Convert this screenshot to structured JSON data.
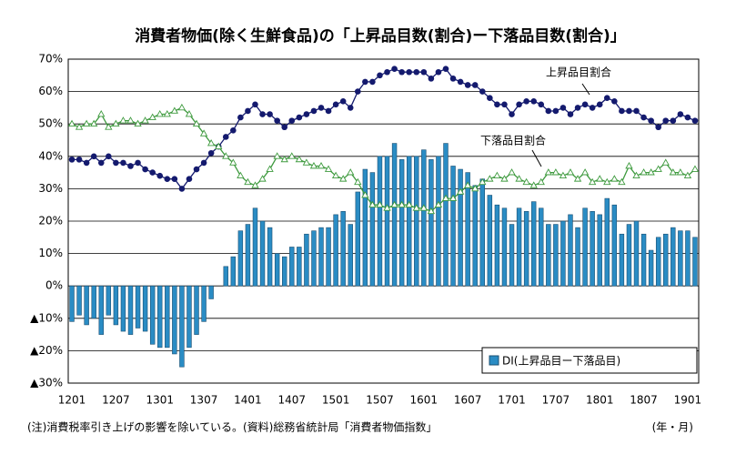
{
  "chart_data": {
    "type": "bar",
    "title": "消費者物価(除く生鮮食品)の「上昇品目数(割合)ー下落品目数(割合)」",
    "footnote": "(注)消費税率引き上げの影響を除いている。(資料)総務省統計局「消費者物価指数」",
    "x_unit": "(年・月)",
    "categories": [
      "1201",
      null,
      null,
      null,
      null,
      null,
      "1207",
      null,
      null,
      null,
      null,
      null,
      "1301",
      null,
      null,
      null,
      null,
      null,
      "1307",
      null,
      null,
      null,
      null,
      null,
      "1401",
      null,
      null,
      null,
      null,
      null,
      "1407",
      null,
      null,
      null,
      null,
      null,
      "1501",
      null,
      null,
      null,
      null,
      null,
      "1507",
      null,
      null,
      null,
      null,
      null,
      "1601",
      null,
      null,
      null,
      null,
      null,
      "1607",
      null,
      null,
      null,
      null,
      null,
      "1701",
      null,
      null,
      null,
      null,
      null,
      "1707",
      null,
      null,
      null,
      null,
      null,
      "1801",
      null,
      null,
      null,
      null,
      null,
      "1807",
      null,
      null,
      null,
      null,
      null,
      "1901",
      null
    ],
    "series": [
      {
        "name": "DI(上昇品目ー下落品目)",
        "type": "bar",
        "color": "#2a8cc4",
        "edge": "#1b4f72",
        "values": [
          -11,
          -9,
          -12,
          -10,
          -15,
          -9,
          -12,
          -14,
          -15,
          -13,
          -14,
          -18,
          -19,
          -19,
          -21,
          -25,
          -19,
          -15,
          -11,
          -4,
          0,
          6,
          9,
          17,
          19,
          24,
          20,
          18,
          10,
          9,
          12,
          12,
          16,
          17,
          18,
          18,
          22,
          23,
          19,
          29,
          36,
          35,
          40,
          40,
          44,
          39,
          40,
          40,
          42,
          39,
          40,
          44,
          37,
          36,
          35,
          31,
          33,
          28,
          25,
          24,
          19,
          24,
          23,
          26,
          24,
          19,
          19,
          20,
          22,
          18,
          24,
          23,
          22,
          27,
          25,
          16,
          19,
          20,
          16,
          11,
          15,
          16,
          18,
          17,
          17,
          15
        ]
      },
      {
        "name": "上昇品目割合",
        "type": "line",
        "marker": "circle",
        "color": "#141a6e",
        "values": [
          39,
          39,
          38,
          40,
          38,
          40,
          38,
          38,
          37,
          38,
          36,
          35,
          34,
          33,
          33,
          30,
          33,
          36,
          38,
          41,
          43,
          46,
          48,
          52,
          54,
          56,
          53,
          53,
          51,
          49,
          51,
          52,
          53,
          54,
          55,
          54,
          56,
          57,
          55,
          60,
          63,
          63,
          65,
          66,
          67,
          66,
          66,
          66,
          66,
          64,
          66,
          67,
          64,
          63,
          62,
          62,
          60,
          58,
          56,
          56,
          53,
          56,
          57,
          57,
          56,
          54,
          54,
          55,
          53,
          55,
          56,
          55,
          56,
          58,
          57,
          54,
          54,
          54,
          52,
          51,
          49,
          51,
          51,
          53,
          52,
          51
        ]
      },
      {
        "name": "下落品目割合",
        "type": "line",
        "marker": "triangle",
        "color": "#3e9a3e",
        "values": [
          50,
          49,
          50,
          50,
          53,
          49,
          50,
          51,
          51,
          50,
          51,
          52,
          53,
          53,
          54,
          55,
          53,
          50,
          47,
          44,
          43,
          40,
          38,
          34,
          32,
          31,
          33,
          36,
          40,
          39,
          40,
          39,
          38,
          37,
          37,
          36,
          34,
          33,
          35,
          32,
          28,
          25,
          25,
          24,
          25,
          25,
          25,
          24,
          24,
          23,
          25,
          27,
          27,
          29,
          31,
          30,
          32,
          33,
          34,
          33,
          35,
          33,
          32,
          31,
          32,
          35,
          35,
          34,
          35,
          33,
          35,
          32,
          33,
          32,
          33,
          32,
          37,
          34,
          35,
          35,
          36,
          38,
          35,
          35,
          34,
          36
        ]
      }
    ],
    "ylim": [
      -30,
      70
    ],
    "yticks": [
      {
        "value": -30,
        "label": "▲30%"
      },
      {
        "value": -20,
        "label": "▲20%"
      },
      {
        "value": -10,
        "label": "▲10%"
      },
      {
        "value": 0,
        "label": "0%"
      },
      {
        "value": 10,
        "label": "10%"
      },
      {
        "value": 20,
        "label": "20%"
      },
      {
        "value": 30,
        "label": "30%"
      },
      {
        "value": 40,
        "label": "40%"
      },
      {
        "value": 50,
        "label": "50%"
      },
      {
        "value": 60,
        "label": "60%"
      },
      {
        "value": 70,
        "label": "70%"
      }
    ],
    "grid": true,
    "legend": "lower right"
  }
}
